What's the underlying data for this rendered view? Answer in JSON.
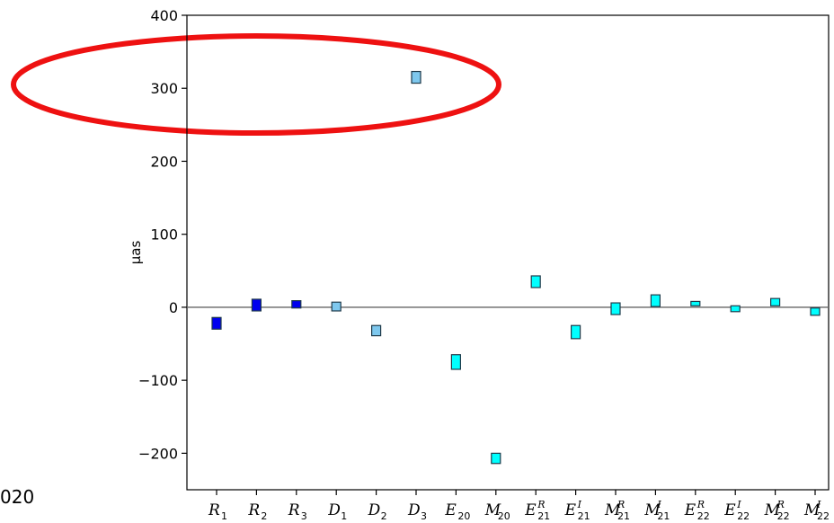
{
  "chart_data": {
    "type": "scatter",
    "marker": "rectangle-error-box",
    "ylabel": "μas",
    "ylim": [
      -250,
      400
    ],
    "yticks": [
      -200,
      -100,
      0,
      100,
      200,
      300,
      400
    ],
    "ytick_labels": [
      "−200",
      "−100",
      "0",
      "100",
      "200",
      "300",
      "400"
    ],
    "grid": false,
    "zero_line": true,
    "categories": [
      {
        "base": "R",
        "sub": "1",
        "sup": ""
      },
      {
        "base": "R",
        "sub": "2",
        "sup": ""
      },
      {
        "base": "R",
        "sub": "3",
        "sup": ""
      },
      {
        "base": "D",
        "sub": "1",
        "sup": ""
      },
      {
        "base": "D",
        "sub": "2",
        "sup": ""
      },
      {
        "base": "D",
        "sub": "3",
        "sup": ""
      },
      {
        "base": "E",
        "sub": "20",
        "sup": ""
      },
      {
        "base": "M",
        "sub": "20",
        "sup": ""
      },
      {
        "base": "E",
        "sub": "21",
        "sup": "R"
      },
      {
        "base": "E",
        "sub": "21",
        "sup": "I"
      },
      {
        "base": "M",
        "sub": "21",
        "sup": "R"
      },
      {
        "base": "M",
        "sub": "21",
        "sup": "I"
      },
      {
        "base": "E",
        "sub": "22",
        "sup": "R"
      },
      {
        "base": "E",
        "sub": "22",
        "sup": "I"
      },
      {
        "base": "M",
        "sub": "22",
        "sup": "R"
      },
      {
        "base": "M",
        "sub": "22",
        "sup": "I"
      }
    ],
    "values": [
      -22,
      3,
      4,
      1,
      -32,
      315,
      -75,
      -207,
      35,
      -34,
      -2,
      9,
      5,
      -2,
      7,
      -6
    ],
    "errors": [
      8,
      8,
      5,
      6,
      7,
      8,
      10,
      7,
      8,
      9,
      8,
      8,
      3,
      4,
      5,
      5
    ],
    "colors": [
      "#0000ee",
      "#0000ee",
      "#0000ee",
      "#7ec8ee",
      "#7ec8ee",
      "#7ec8ee",
      "#00ffff",
      "#00ffff",
      "#00ffff",
      "#00ffff",
      "#00ffff",
      "#00ffff",
      "#00ffff",
      "#00ffff",
      "#00ffff",
      "#00ffff"
    ],
    "annotation": {
      "shape": "ellipse",
      "color": "#ee1111",
      "center": [
        -0.8,
        315
      ]
    }
  },
  "fragments": {
    "left_bottom": "020"
  }
}
